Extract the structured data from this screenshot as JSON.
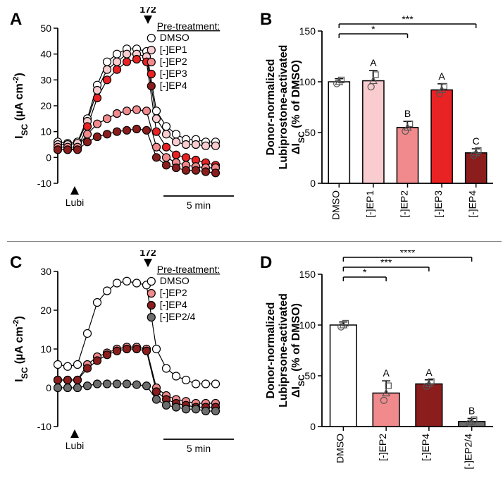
{
  "colors": {
    "white": "#ffffff",
    "ep1": "#f9cccf",
    "ep2": "#f08a8c",
    "ep3": "#e92224",
    "ep4": "#8b1d1d",
    "ep24": "#6d6d6d",
    "black": "#000000"
  },
  "panelA": {
    "label": "A",
    "y_title": "I_SC (µA cm^-2)",
    "y_ticks": [
      -10,
      0,
      10,
      20,
      30,
      40,
      50
    ],
    "x_len_min": 13,
    "legend_title": "Pre-treatment:",
    "legend": [
      {
        "label": "DMSO",
        "color": "#ffffff"
      },
      {
        "label": "[-]EP1",
        "color": "#f9cccf"
      },
      {
        "label": "[-]EP2",
        "color": "#f08a8c"
      },
      {
        "label": "[-]EP3",
        "color": "#e92224"
      },
      {
        "label": "[-]EP4",
        "color": "#8b1d1d"
      }
    ],
    "arrow_lubi": {
      "x": 1.2,
      "label": "Lubi"
    },
    "arrow_172": {
      "x": 6.4,
      "label": "172"
    },
    "scalebar": {
      "len_min": 5,
      "label": "5 min"
    },
    "series": {
      "DMSO": [
        [
          0,
          6
        ],
        [
          0.7,
          5.5
        ],
        [
          1.4,
          6
        ],
        [
          2.1,
          15
        ],
        [
          2.8,
          28
        ],
        [
          3.5,
          37
        ],
        [
          4.2,
          40
        ],
        [
          4.9,
          42
        ],
        [
          5.6,
          42
        ],
        [
          6.3,
          41
        ],
        [
          7.0,
          18
        ],
        [
          7.7,
          12
        ],
        [
          8.4,
          9
        ],
        [
          9.1,
          7
        ],
        [
          9.8,
          7
        ],
        [
          10.5,
          6
        ],
        [
          11.2,
          6
        ]
      ],
      "EP1": [
        [
          0,
          5
        ],
        [
          0.7,
          5
        ],
        [
          1.4,
          5.5
        ],
        [
          2.1,
          14
        ],
        [
          2.8,
          26
        ],
        [
          3.5,
          34
        ],
        [
          4.2,
          37
        ],
        [
          4.9,
          40
        ],
        [
          5.6,
          40
        ],
        [
          6.3,
          39
        ],
        [
          7.0,
          15
        ],
        [
          7.7,
          9
        ],
        [
          8.4,
          6
        ],
        [
          9.1,
          5
        ],
        [
          9.8,
          5
        ],
        [
          10.5,
          4.5
        ],
        [
          11.2,
          4.5
        ]
      ],
      "EP3": [
        [
          0,
          3
        ],
        [
          0.7,
          3
        ],
        [
          1.4,
          3.5
        ],
        [
          2.1,
          12
        ],
        [
          2.8,
          23
        ],
        [
          3.5,
          30
        ],
        [
          4.2,
          34
        ],
        [
          4.9,
          37
        ],
        [
          5.6,
          38
        ],
        [
          6.3,
          37
        ],
        [
          7.0,
          10
        ],
        [
          7.7,
          4
        ],
        [
          8.4,
          1
        ],
        [
          9.1,
          0
        ],
        [
          9.8,
          -1
        ],
        [
          10.5,
          -2
        ],
        [
          11.2,
          -3
        ]
      ],
      "EP2": [
        [
          0,
          4
        ],
        [
          0.7,
          4
        ],
        [
          1.4,
          4
        ],
        [
          2.1,
          9
        ],
        [
          2.8,
          13
        ],
        [
          3.5,
          15
        ],
        [
          4.2,
          17
        ],
        [
          4.9,
          18
        ],
        [
          5.6,
          18.5
        ],
        [
          6.3,
          18
        ],
        [
          7.0,
          4
        ],
        [
          7.7,
          0
        ],
        [
          8.4,
          -2
        ],
        [
          9.1,
          -3
        ],
        [
          9.8,
          -3.5
        ],
        [
          10.5,
          -4
        ],
        [
          11.2,
          -4
        ]
      ],
      "EP4": [
        [
          0,
          3
        ],
        [
          0.7,
          3
        ],
        [
          1.4,
          3
        ],
        [
          2.1,
          6
        ],
        [
          2.8,
          8
        ],
        [
          3.5,
          9
        ],
        [
          4.2,
          10
        ],
        [
          4.9,
          10.5
        ],
        [
          5.6,
          11
        ],
        [
          6.3,
          10.5
        ],
        [
          7.0,
          0
        ],
        [
          7.7,
          -3
        ],
        [
          8.4,
          -4
        ],
        [
          9.1,
          -5
        ],
        [
          9.8,
          -5
        ],
        [
          10.5,
          -5.5
        ],
        [
          11.2,
          -6
        ]
      ]
    }
  },
  "panelB": {
    "label": "B",
    "y_title_lines": [
      "Donor-normalized",
      "Lubiprostone-activated",
      "ΔI_SC (% of DMSO)"
    ],
    "y_ticks": [
      0,
      50,
      100,
      150
    ],
    "bars": [
      {
        "label": "DMSO",
        "value": 100,
        "err": 3,
        "letter": "",
        "color": "#ffffff"
      },
      {
        "label": "[-]EP1",
        "value": 101,
        "err": 10,
        "letter": "A",
        "color": "#f9cccf"
      },
      {
        "label": "[-]EP2",
        "value": 55,
        "err": 6,
        "letter": "B",
        "color": "#f08a8c"
      },
      {
        "label": "[-]EP3",
        "value": 92,
        "err": 6,
        "letter": "A",
        "color": "#e92224"
      },
      {
        "label": "[-]EP4",
        "value": 30,
        "err": 4,
        "letter": "C",
        "color": "#8b1d1d"
      }
    ],
    "sig": [
      {
        "from": 0,
        "to": 2,
        "stars": "*",
        "level": 1
      },
      {
        "from": 0,
        "to": 4,
        "stars": "***",
        "level": 2
      }
    ],
    "scatter_shapes": [
      "circle",
      "triangle",
      "square"
    ]
  },
  "panelC": {
    "label": "C",
    "y_title": "I_SC (µA cm^-2)",
    "y_ticks": [
      -10,
      0,
      10,
      20,
      30
    ],
    "x_len_min": 13,
    "legend_title": "Pre-treatment:",
    "legend": [
      {
        "label": "DMSO",
        "color": "#ffffff"
      },
      {
        "label": "[-]EP2",
        "color": "#f08a8c"
      },
      {
        "label": "[-]EP4",
        "color": "#8b1d1d"
      },
      {
        "label": "[-]EP2/4",
        "color": "#6d6d6d"
      }
    ],
    "arrow_lubi": {
      "x": 1.2,
      "label": "Lubi"
    },
    "arrow_172": {
      "x": 6.4,
      "label": "172"
    },
    "scalebar": {
      "len_min": 5,
      "label": "5 min"
    },
    "series": {
      "DMSO": [
        [
          0,
          6
        ],
        [
          0.7,
          5.5
        ],
        [
          1.4,
          6
        ],
        [
          2.1,
          14
        ],
        [
          2.8,
          22
        ],
        [
          3.5,
          25
        ],
        [
          4.2,
          27
        ],
        [
          4.9,
          27.5
        ],
        [
          5.6,
          27
        ],
        [
          6.3,
          26.5
        ],
        [
          7.0,
          10
        ],
        [
          7.7,
          5
        ],
        [
          8.4,
          3
        ],
        [
          9.1,
          2
        ],
        [
          9.8,
          1
        ],
        [
          10.5,
          1
        ],
        [
          11.2,
          1
        ]
      ],
      "EP2": [
        [
          0,
          2
        ],
        [
          0.7,
          2
        ],
        [
          1.4,
          2
        ],
        [
          2.1,
          6
        ],
        [
          2.8,
          8
        ],
        [
          3.5,
          9
        ],
        [
          4.2,
          10
        ],
        [
          4.9,
          10.5
        ],
        [
          5.6,
          10.5
        ],
        [
          6.3,
          10
        ],
        [
          7.0,
          0
        ],
        [
          7.7,
          -2
        ],
        [
          8.4,
          -3
        ],
        [
          9.1,
          -3.5
        ],
        [
          9.8,
          -4
        ],
        [
          10.5,
          -4
        ],
        [
          11.2,
          -4
        ]
      ],
      "EP4": [
        [
          0,
          2
        ],
        [
          0.7,
          2
        ],
        [
          1.4,
          2
        ],
        [
          2.1,
          5
        ],
        [
          2.8,
          7
        ],
        [
          3.5,
          8.5
        ],
        [
          4.2,
          9.5
        ],
        [
          4.9,
          10
        ],
        [
          5.6,
          10
        ],
        [
          6.3,
          9.5
        ],
        [
          7.0,
          -1
        ],
        [
          7.7,
          -3
        ],
        [
          8.4,
          -4
        ],
        [
          9.1,
          -4.5
        ],
        [
          9.8,
          -5
        ],
        [
          10.5,
          -5
        ],
        [
          11.2,
          -5
        ]
      ],
      "EP24": [
        [
          0,
          0
        ],
        [
          0.7,
          0
        ],
        [
          1.4,
          0
        ],
        [
          2.1,
          0.5
        ],
        [
          2.8,
          1
        ],
        [
          3.5,
          1
        ],
        [
          4.2,
          1
        ],
        [
          4.9,
          1
        ],
        [
          5.6,
          0.8
        ],
        [
          6.3,
          0.5
        ],
        [
          7.0,
          -3
        ],
        [
          7.7,
          -4.5
        ],
        [
          8.4,
          -5
        ],
        [
          9.1,
          -5.5
        ],
        [
          9.8,
          -5.5
        ],
        [
          10.5,
          -6
        ],
        [
          11.2,
          -6
        ]
      ]
    }
  },
  "panelD": {
    "label": "D",
    "y_title_lines": [
      "Donor-normalized",
      "Lubiprsone-activated",
      "ΔI_SC (% of DMSO)"
    ],
    "y_ticks": [
      0,
      50,
      100,
      150
    ],
    "bars": [
      {
        "label": "DMSO",
        "value": 100,
        "err": 3,
        "letter": "",
        "color": "#ffffff"
      },
      {
        "label": "[-]EP2",
        "value": 33,
        "err": 12,
        "letter": "A",
        "color": "#f08a8c"
      },
      {
        "label": "[-]EP4",
        "value": 42,
        "err": 4,
        "letter": "A",
        "color": "#8b1d1d"
      },
      {
        "label": "[-]EP2/4",
        "value": 5,
        "err": 3,
        "letter": "B",
        "color": "#6d6d6d"
      }
    ],
    "sig": [
      {
        "from": 0,
        "to": 1,
        "stars": "*",
        "level": 1
      },
      {
        "from": 0,
        "to": 2,
        "stars": "***",
        "level": 2
      },
      {
        "from": 0,
        "to": 3,
        "stars": "****",
        "level": 3
      }
    ],
    "scatter_shapes": [
      "circle",
      "triangle",
      "square"
    ]
  }
}
